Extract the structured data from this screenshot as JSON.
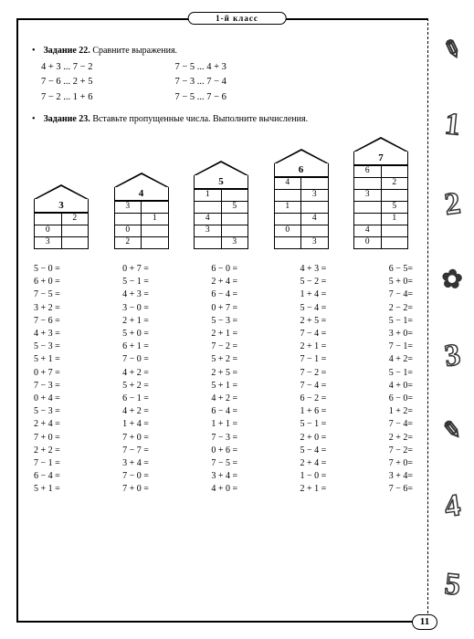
{
  "header": "1-й класс",
  "task22": {
    "label": "Задание 22.",
    "text": "Сравните выражения.",
    "left": [
      "4 + 3 ... 7 − 2",
      "7 − 6 ... 2 + 5",
      "7 − 2 ... 1 + 6"
    ],
    "right": [
      "7 − 5 ... 4 + 3",
      "7 − 3 ... 7 − 4",
      "7 − 5 ... 7 − 6"
    ]
  },
  "task23": {
    "label": "Задание 23.",
    "text": "Вставьте пропущенные числа. Выполните вычисления.",
    "houses": [
      {
        "n": "3",
        "rows": [
          [
            "",
            "2"
          ],
          [
            "0",
            ""
          ],
          [
            "3",
            ""
          ]
        ]
      },
      {
        "n": "4",
        "rows": [
          [
            "3",
            ""
          ],
          [
            "",
            "1"
          ],
          [
            "0",
            ""
          ],
          [
            "2",
            ""
          ]
        ]
      },
      {
        "n": "5",
        "rows": [
          [
            "1",
            ""
          ],
          [
            "",
            "5"
          ],
          [
            "4",
            ""
          ],
          [
            "3",
            ""
          ],
          [
            "",
            "3"
          ]
        ]
      },
      {
        "n": "6",
        "rows": [
          [
            "4",
            ""
          ],
          [
            "",
            "3"
          ],
          [
            "1",
            ""
          ],
          [
            "",
            "4"
          ],
          [
            "0",
            ""
          ],
          [
            "",
            "3"
          ]
        ]
      },
      {
        "n": "7",
        "rows": [
          [
            "6",
            ""
          ],
          [
            "",
            "2"
          ],
          [
            "3",
            ""
          ],
          [
            "",
            "5"
          ],
          [
            "",
            "1"
          ],
          [
            "4",
            ""
          ],
          [
            "0",
            ""
          ]
        ]
      }
    ],
    "cols": [
      [
        "5 − 0 =",
        "6 + 0 =",
        "7 − 5 =",
        "3 + 2 =",
        "7 − 6 =",
        "4 + 3 =",
        "5 − 3 =",
        "5 + 1 =",
        "0 + 7 =",
        "7 − 3 =",
        "0 + 4 =",
        "5 − 3 =",
        "2 + 4 =",
        "7 + 0 =",
        "2 + 2 =",
        "7 − 1 =",
        "6 − 4 =",
        "5 + 1 ="
      ],
      [
        "0 + 7 =",
        "5 − 1 =",
        "4 + 3 =",
        "3 − 0 =",
        "2 + 1 =",
        "5 + 0 =",
        "6 + 1 =",
        "7 − 0 =",
        "4 + 2 =",
        "5 + 2 =",
        "6 − 1 =",
        "4 + 2 =",
        "1 + 4 =",
        "7 + 0 =",
        "7 − 7 =",
        "3 + 4 =",
        "7 − 0 =",
        "7 + 0 ="
      ],
      [
        "6 − 0 =",
        "2 + 4 =",
        "6 − 4 =",
        "0 + 7 =",
        "5 − 3 =",
        "2 + 1 =",
        "7 − 2 =",
        "5 + 2 =",
        "2 + 5 =",
        "5 + 1 =",
        "4 + 2 =",
        "6 − 4 =",
        "1 + 1 =",
        "7 − 3 =",
        "0 + 6 =",
        "7 − 5 =",
        "3 + 4 =",
        "4 + 0 ="
      ],
      [
        "4 + 3 =",
        "5 − 2 =",
        "1 + 4 =",
        "5 − 4 =",
        "2 + 5 =",
        "7 − 4 =",
        "2 + 1 =",
        "7 − 1 =",
        "7 − 2 =",
        "7 − 4 =",
        "6 − 2 =",
        "1 + 6 =",
        "5 − 1 =",
        "2 + 0 =",
        "5 − 4 =",
        "2 + 4 =",
        "1 − 0 =",
        "2 + 1 ="
      ],
      [
        "6 − 5=",
        "5 + 0=",
        "7 − 4=",
        "2 − 2=",
        "5 − 1=",
        "3 + 0=",
        "7 − 1=",
        "4 + 2=",
        "5 − 1=",
        "4 + 0=",
        "6 − 0=",
        "1 + 2=",
        "7 − 4=",
        "2 + 2=",
        "7 − 2=",
        "7 + 0=",
        "3 + 4=",
        "7 − 6="
      ]
    ]
  },
  "pagenum": "11",
  "deco": [
    "✎",
    "1",
    "2",
    "✿",
    "3",
    "✎",
    "4",
    "5"
  ]
}
